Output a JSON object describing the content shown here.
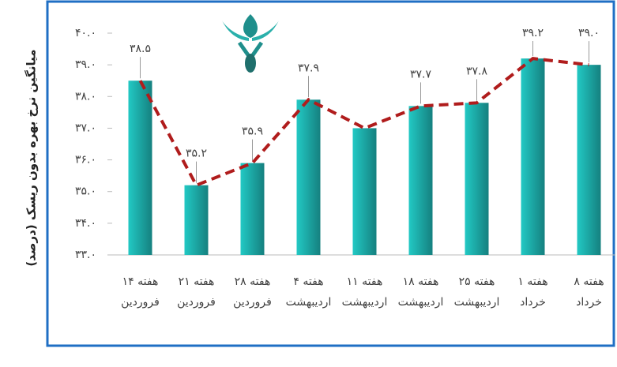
{
  "chart_data": {
    "type": "bar",
    "y_label": "میانگین نرخ بهره بدون ریسک (درصد)",
    "categories": [
      [
        "هفته ۱۴",
        "فروردین"
      ],
      [
        "هفته ۲۱",
        "فروردین"
      ],
      [
        "هفته ۲۸",
        "فروردین"
      ],
      [
        "هفته ۴",
        "اردیبهشت"
      ],
      [
        "هفته ۱۱",
        "اردیبهشت"
      ],
      [
        "هفته ۱۸",
        "اردیبهشت"
      ],
      [
        "هفته ۲۵",
        "اردیبهشت"
      ],
      [
        "هفته ۱",
        "خرداد"
      ],
      [
        "هفته ۸",
        "خرداد"
      ]
    ],
    "values": [
      38.5,
      35.2,
      35.9,
      37.9,
      37.0,
      37.7,
      37.8,
      39.2,
      39.0
    ],
    "value_labels": [
      "۳۸.۵",
      "۳۵.۲",
      "۳۵.۹",
      "۳۷.۹",
      null,
      "۳۷.۷",
      "۳۷.۸",
      "۳۹.۲",
      "۳۹.۰"
    ],
    "color": "#1aa6a6",
    "line_color": "#b01c1c",
    "ylim": [
      33,
      40
    ],
    "yticks": [
      {
        "value": 33,
        "label": "۳۳.۰"
      },
      {
        "value": 34,
        "label": "۳۴.۰"
      },
      {
        "value": 35,
        "label": "۳۵.۰"
      },
      {
        "value": 36,
        "label": "۳۶.۰"
      },
      {
        "value": 37,
        "label": "۳۷.۰"
      },
      {
        "value": 38,
        "label": "۳۸.۰"
      },
      {
        "value": 39,
        "label": "۳۹.۰"
      },
      {
        "value": 40,
        "label": "۴۰.۰"
      }
    ]
  }
}
